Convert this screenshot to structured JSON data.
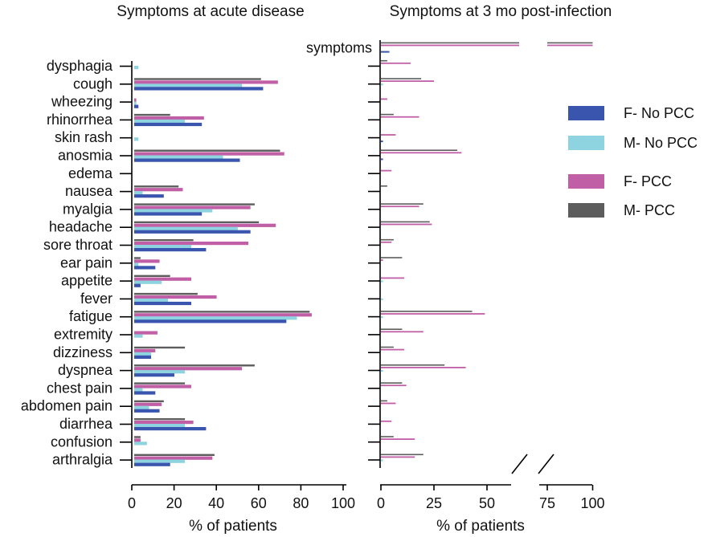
{
  "chart_data": [
    {
      "type": "bar",
      "orientation": "horizontal",
      "title": "Symptoms at acute disease",
      "xlabel": "% of patients",
      "xlim": [
        0,
        100
      ],
      "xticks": [
        "0",
        "20",
        "40",
        "60",
        "80",
        "100"
      ],
      "categories": [
        "dysphagia",
        "cough",
        "wheezing",
        "rhinorrhea",
        "skin rash",
        "anosmia",
        "edema",
        "nausea",
        "myalgia",
        "headache",
        "sore throat",
        "ear pain",
        "appetite",
        "fever",
        "fatigue",
        "extremity",
        "dizziness",
        "dyspnea",
        "chest pain",
        "abdomen pain",
        "diarrhea",
        "confusion",
        "arthralgia"
      ],
      "series": [
        {
          "name": "M- PCC",
          "values": [
            0,
            60,
            0,
            17,
            0,
            69,
            0,
            21,
            57,
            59,
            28,
            3,
            17,
            30,
            83,
            0,
            24,
            57,
            24,
            14,
            24,
            3,
            38
          ]
        },
        {
          "name": "F- PCC",
          "values": [
            0,
            68,
            1,
            33,
            0,
            71,
            0,
            23,
            55,
            67,
            54,
            12,
            27,
            39,
            84,
            11,
            10,
            51,
            27,
            13,
            28,
            3,
            37
          ]
        },
        {
          "name": "M- No PCC",
          "values": [
            2,
            51,
            1,
            24,
            2,
            42,
            0,
            4,
            37,
            49,
            27,
            2,
            13,
            16,
            77,
            4,
            8,
            24,
            4,
            7,
            24,
            6,
            24
          ]
        },
        {
          "name": "F- No PCC",
          "values": [
            0,
            61,
            2,
            32,
            0,
            50,
            0,
            14,
            32,
            55,
            34,
            10,
            3,
            27,
            72,
            0,
            8,
            19,
            10,
            12,
            34,
            0,
            17
          ]
        }
      ]
    },
    {
      "type": "bar",
      "orientation": "horizontal",
      "title": "Symptoms at 3 mo post-infection",
      "xlabel": "% of patients",
      "x_axis_break": [
        62,
        75
      ],
      "xticks": [
        "0",
        "25",
        "50",
        "75",
        "100"
      ],
      "categories": [
        "symptoms",
        "dysphagia",
        "cough",
        "wheezing",
        "rhinorrhea",
        "skin rash",
        "anosmia",
        "edema",
        "nausea",
        "myalgia",
        "headache",
        "sore throat",
        "ear pain",
        "appetite",
        "fever",
        "fatigue",
        "extremity",
        "dizziness",
        "dyspnea",
        "chest pain",
        "abdomen pain",
        "diarrhea",
        "confusion",
        "arthralgia"
      ],
      "series": [
        {
          "name": "M- PCC",
          "values": [
            100,
            3,
            19,
            0,
            6,
            0,
            36,
            0,
            3,
            20,
            23,
            6,
            10,
            0,
            0,
            43,
            10,
            6,
            30,
            10,
            3,
            0,
            6,
            20
          ]
        },
        {
          "name": "F- PCC",
          "values": [
            100,
            14,
            25,
            3,
            18,
            7,
            38,
            5,
            0,
            18,
            24,
            5,
            1,
            11,
            0,
            49,
            20,
            11,
            40,
            12,
            7,
            5,
            16,
            16
          ]
        },
        {
          "name": "M- No PCC",
          "values": [
            0,
            0,
            1,
            0,
            0,
            0,
            0,
            0,
            0,
            0,
            0,
            0,
            0,
            1,
            1,
            1,
            0,
            0,
            1,
            0,
            0,
            0,
            0,
            1
          ]
        },
        {
          "name": "F- No PCC",
          "values": [
            4,
            0,
            0,
            0,
            0,
            1,
            1,
            0,
            0,
            0,
            0,
            0,
            0,
            0,
            0,
            0,
            0,
            0,
            0,
            0,
            0,
            0,
            0,
            0
          ]
        }
      ]
    }
  ],
  "legend": [
    {
      "label": "F- No PCC",
      "color": "#3a55ad"
    },
    {
      "label": "M- No PCC",
      "color": "#8ed3e0"
    },
    {
      "label": "F- PCC",
      "color": "#c15fa6"
    },
    {
      "label": "M- PCC",
      "color": "#5d5d5d"
    }
  ]
}
